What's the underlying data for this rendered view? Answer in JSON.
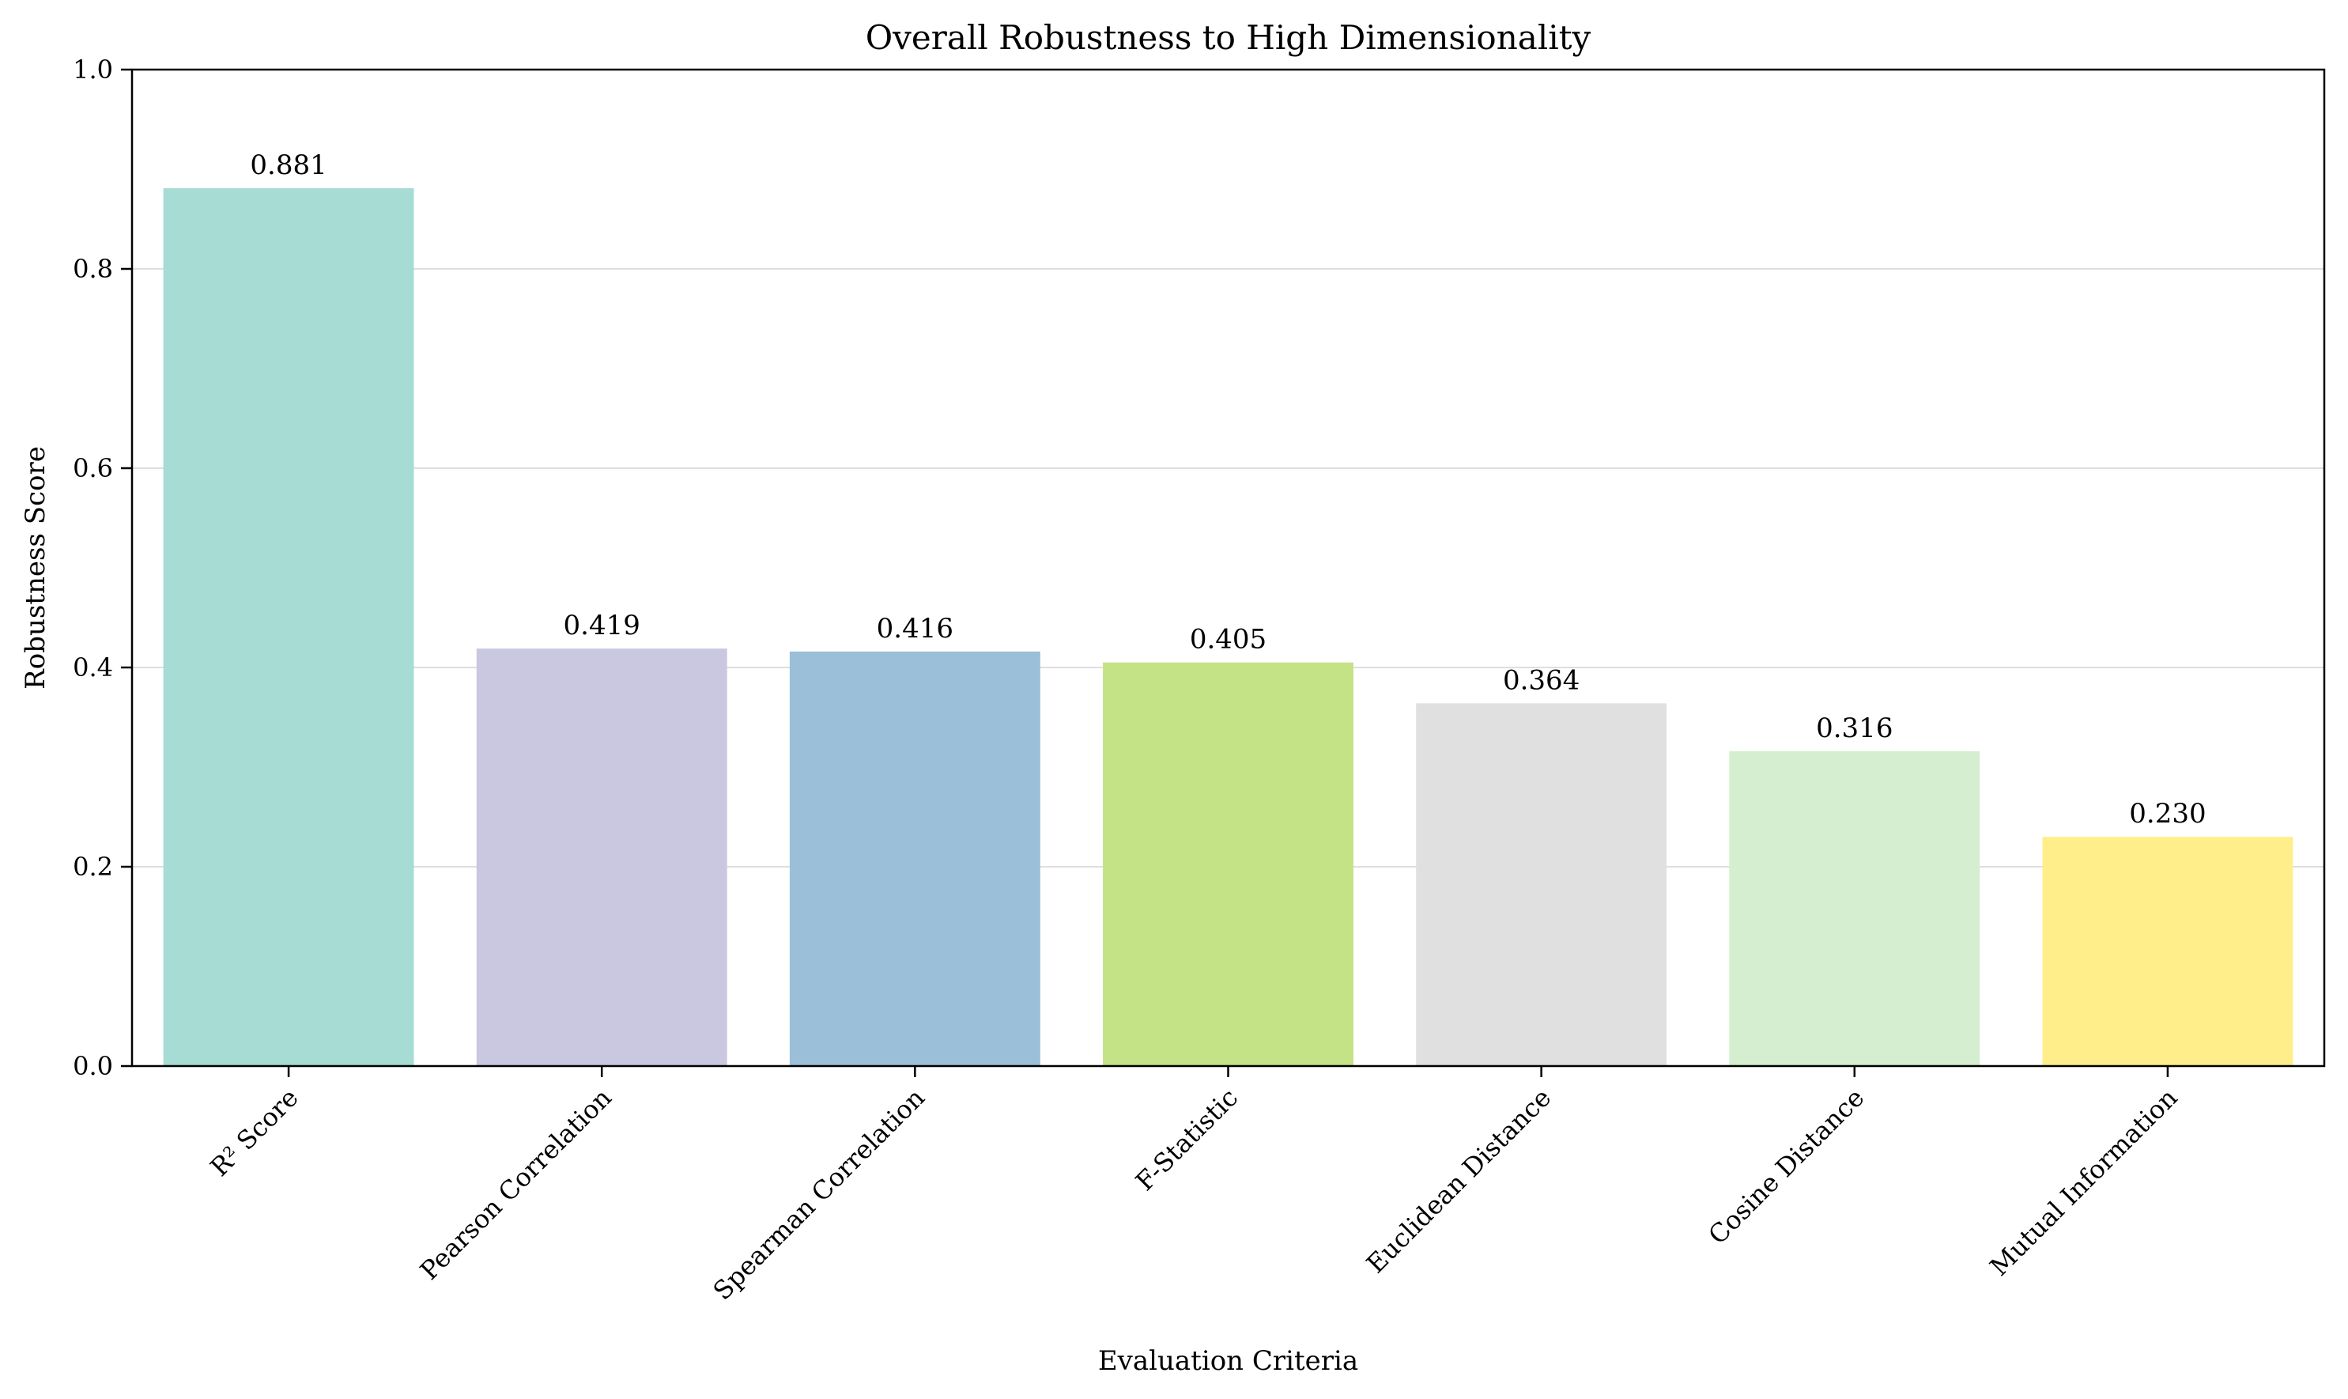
{
  "chart_data": {
    "type": "bar",
    "title": "Overall Robustness to High Dimensionality",
    "xlabel": "Evaluation Criteria",
    "ylabel": "Robustness Score",
    "ylim": [
      0,
      1.0
    ],
    "yticks": [
      "0.0",
      "0.2",
      "0.4",
      "0.6",
      "0.8",
      "1.0"
    ],
    "grid": "y",
    "categories": [
      "R² Score",
      "Pearson Correlation",
      "Spearman Correlation",
      "F-Statistic",
      "Euclidean Distance",
      "Cosine Distance",
      "Mutual Information"
    ],
    "values": [
      0.881,
      0.419,
      0.416,
      0.405,
      0.364,
      0.316,
      0.23
    ],
    "value_labels": [
      "0.881",
      "0.419",
      "0.416",
      "0.405",
      "0.364",
      "0.316",
      "0.230"
    ],
    "colors": [
      "#a6dcd4",
      "#cac8e0",
      "#9bbfd9",
      "#c4e387",
      "#e0e0e0",
      "#d6eed0",
      "#ffee8a"
    ]
  }
}
